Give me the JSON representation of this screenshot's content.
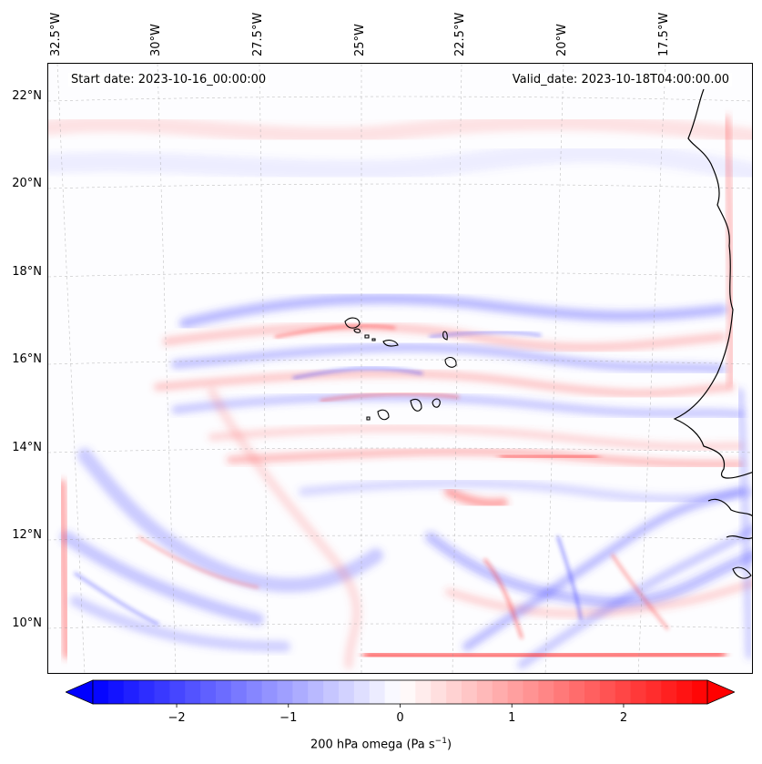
{
  "map": {
    "start_date": "Start date: 2023-10-16_00:00:00",
    "valid_date": "Valid_date: 2023-10-18T04:00:00.00",
    "longitude_labels": [
      "32.5°W",
      "30°W",
      "27.5°W",
      "25°W",
      "22.5°W",
      "20°W",
      "17.5°W"
    ],
    "latitude_labels": [
      "22°N",
      "20°N",
      "18°N",
      "16°N",
      "14°N",
      "12°N",
      "10°N"
    ],
    "field": "200 hPa omega",
    "region": "Eastern tropical North Atlantic, Cape Verde islands and West African coast",
    "colormap": "bwr",
    "colors": {
      "negative": "#0000ff",
      "zero": "#ffffff",
      "positive": "#ff0000"
    }
  },
  "colorbar": {
    "ticks": [
      "−2",
      "−1",
      "0",
      "1",
      "2"
    ],
    "label_main": "200 hPa omega (Pa s",
    "label_exp": "−1",
    "label_close": ")",
    "range": [
      -2.75,
      2.75
    ],
    "extend": "both"
  }
}
